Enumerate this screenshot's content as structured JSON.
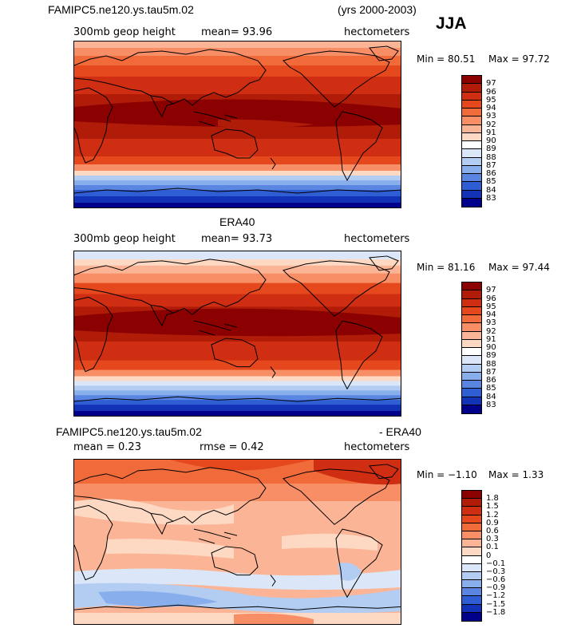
{
  "chart_data": [
    {
      "type": "heatmap",
      "title": "FAMIPC5.ne120.ys.tau5m.02",
      "title_right": "(yrs 2000-2003)",
      "left_label": "300mb geop height",
      "center_label": "mean=  93.96",
      "units": "hectometers",
      "min_label": "Min =  80.51",
      "max_label": "Max =  97.72",
      "min": 80.51,
      "max": 97.72,
      "mean": 93.96,
      "levels": [
        "97",
        "96",
        "95",
        "94",
        "93",
        "92",
        "91",
        "90",
        "89",
        "88",
        "87",
        "86",
        "85",
        "84",
        "83"
      ],
      "colors": [
        "#8b0000",
        "#b01c08",
        "#cf2e12",
        "#e5481c",
        "#f06a3a",
        "#f78e66",
        "#fbb596",
        "#fdd9c4",
        "#ffffff",
        "#dbe7f8",
        "#b3cdf2",
        "#88aeec",
        "#5a86e2",
        "#2f5dd4",
        "#1232b8",
        "#00008b"
      ]
    },
    {
      "type": "heatmap",
      "title": "ERA40",
      "left_label": "300mb geop height",
      "center_label": "mean=  93.73",
      "units": "hectometers",
      "min_label": "Min =  81.16",
      "max_label": "Max =  97.44",
      "min": 81.16,
      "max": 97.44,
      "mean": 93.73,
      "levels": [
        "97",
        "96",
        "95",
        "94",
        "93",
        "92",
        "91",
        "90",
        "89",
        "88",
        "87",
        "86",
        "85",
        "84",
        "83"
      ],
      "colors": [
        "#8b0000",
        "#b01c08",
        "#cf2e12",
        "#e5481c",
        "#f06a3a",
        "#f78e66",
        "#fbb596",
        "#fdd9c4",
        "#ffffff",
        "#dbe7f8",
        "#b3cdf2",
        "#88aeec",
        "#5a86e2",
        "#2f5dd4",
        "#1232b8",
        "#00008b"
      ]
    },
    {
      "type": "heatmap",
      "title": "FAMIPC5.ne120.ys.tau5m.02",
      "title_right": "- ERA40",
      "left_label": "mean =    0.23",
      "center_label": "rmse =    0.42",
      "units": "hectometers",
      "min_label": "Min =  −1.10",
      "max_label": "Max =    1.33",
      "min": -1.1,
      "max": 1.33,
      "mean": 0.23,
      "rmse": 0.42,
      "levels": [
        "1.8",
        "1.5",
        "1.2",
        "0.9",
        "0.6",
        "0.3",
        "0.1",
        "0",
        "−0.1",
        "−0.3",
        "−0.6",
        "−0.9",
        "−1.2",
        "−1.5",
        "−1.8"
      ],
      "colors": [
        "#8b0000",
        "#b01c08",
        "#cf2e12",
        "#e5481c",
        "#f06a3a",
        "#f78e66",
        "#fbb596",
        "#fdd9c4",
        "#ffffff",
        "#dbe7f8",
        "#b3cdf2",
        "#88aeec",
        "#5a86e2",
        "#2f5dd4",
        "#1232b8",
        "#00008b"
      ]
    }
  ],
  "season": "JJA"
}
